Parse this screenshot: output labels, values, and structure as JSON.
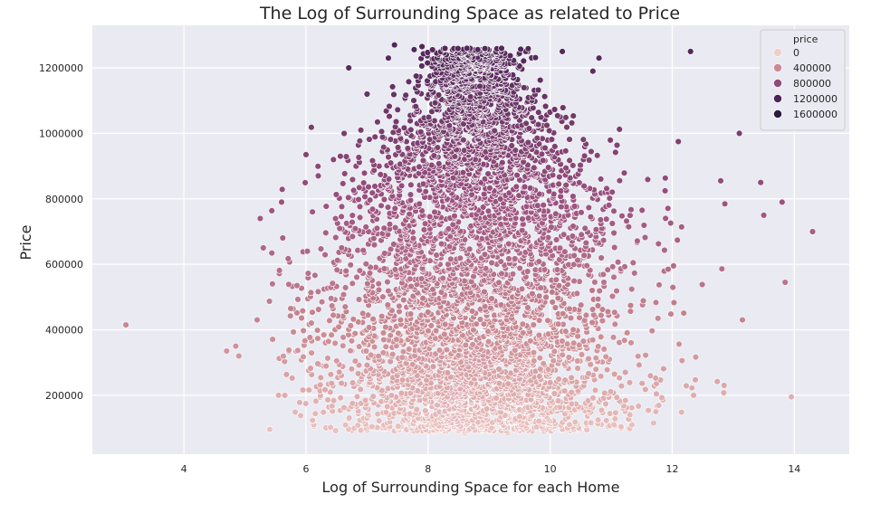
{
  "chart_data": {
    "type": "scatter",
    "title": "The Log of Surrounding Space as related to Price",
    "xlabel": "Log of Surrounding Space for each Home",
    "ylabel": "Price",
    "xlim": [
      2.5,
      14.9
    ],
    "ylim": [
      20000,
      1330000
    ],
    "xticks": [
      4,
      6,
      8,
      10,
      12,
      14
    ],
    "yticks": [
      200000,
      400000,
      600000,
      800000,
      1000000,
      1200000
    ],
    "xtick_labels": [
      "4",
      "6",
      "8",
      "10",
      "12",
      "14"
    ],
    "ytick_labels": [
      "200000",
      "400000",
      "600000",
      "800000",
      "1000000",
      "1200000"
    ],
    "grid": true,
    "background": "#eaeaf2",
    "hue": "price",
    "color_scale": [
      "#f3d2cc",
      "#c98a93",
      "#9a517f",
      "#5a2c5e",
      "#2b1a3d"
    ],
    "legend": {
      "title": "price",
      "position": "top-right",
      "entries": [
        {
          "label": "0",
          "color": "#f0cdc6"
        },
        {
          "label": "400000",
          "color": "#c98a93"
        },
        {
          "label": "800000",
          "color": "#8f4c7a"
        },
        {
          "label": "1200000",
          "color": "#4a2556"
        },
        {
          "label": "1600000",
          "color": "#2b1a3d"
        }
      ]
    },
    "points": [
      {
        "x": 3.05,
        "y": 415000
      },
      {
        "x": 4.7,
        "y": 335000
      },
      {
        "x": 4.85,
        "y": 350000
      },
      {
        "x": 4.9,
        "y": 320000
      },
      {
        "x": 5.2,
        "y": 430000
      },
      {
        "x": 5.3,
        "y": 650000
      },
      {
        "x": 5.25,
        "y": 740000
      },
      {
        "x": 5.45,
        "y": 540000
      },
      {
        "x": 5.6,
        "y": 790000
      },
      {
        "x": 5.55,
        "y": 200000
      },
      {
        "x": 5.75,
        "y": 465000
      },
      {
        "x": 6.0,
        "y": 935000
      },
      {
        "x": 6.2,
        "y": 870000
      },
      {
        "x": 6.45,
        "y": 920000
      },
      {
        "x": 6.7,
        "y": 1200000
      },
      {
        "x": 6.9,
        "y": 1010000
      },
      {
        "x": 7.0,
        "y": 1120000
      },
      {
        "x": 7.35,
        "y": 1230000
      },
      {
        "x": 7.45,
        "y": 1270000
      },
      {
        "x": 7.9,
        "y": 1265000
      },
      {
        "x": 8.4,
        "y": 1255000
      },
      {
        "x": 8.7,
        "y": 1245000
      },
      {
        "x": 9.2,
        "y": 1250000
      },
      {
        "x": 9.6,
        "y": 1250000
      },
      {
        "x": 10.2,
        "y": 1250000
      },
      {
        "x": 10.8,
        "y": 1230000
      },
      {
        "x": 10.7,
        "y": 1190000
      },
      {
        "x": 12.3,
        "y": 1250000
      },
      {
        "x": 12.1,
        "y": 975000
      },
      {
        "x": 13.1,
        "y": 1000000
      },
      {
        "x": 13.45,
        "y": 850000
      },
      {
        "x": 13.5,
        "y": 750000
      },
      {
        "x": 13.8,
        "y": 790000
      },
      {
        "x": 13.85,
        "y": 545000
      },
      {
        "x": 14.3,
        "y": 700000
      },
      {
        "x": 13.95,
        "y": 195000
      },
      {
        "x": 12.35,
        "y": 200000
      },
      {
        "x": 13.15,
        "y": 430000
      },
      {
        "x": 12.85,
        "y": 230000
      },
      {
        "x": 7.0,
        "y": 130000
      },
      {
        "x": 7.5,
        "y": 100000
      },
      {
        "x": 8.1,
        "y": 90000
      },
      {
        "x": 8.6,
        "y": 85000
      },
      {
        "x": 9.3,
        "y": 85000
      },
      {
        "x": 9.9,
        "y": 90000
      },
      {
        "x": 10.6,
        "y": 110000
      },
      {
        "x": 11.2,
        "y": 160000
      }
    ]
  }
}
